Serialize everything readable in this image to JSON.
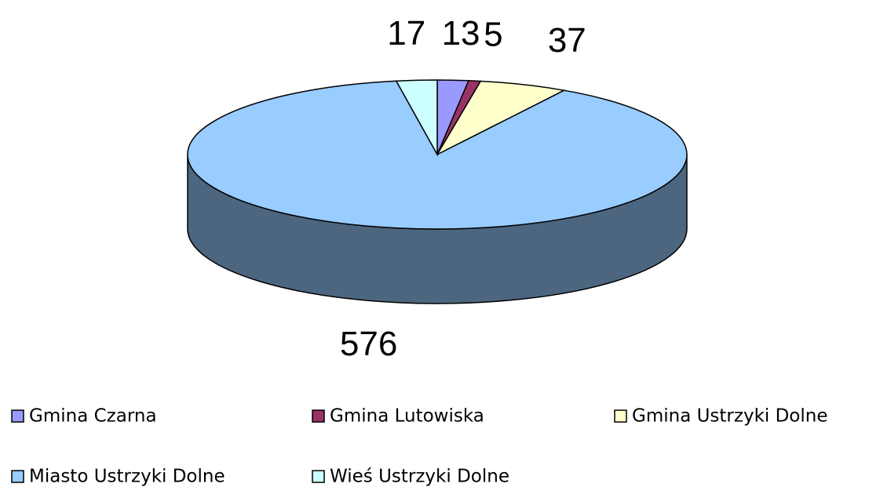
{
  "chart_data": {
    "type": "pie",
    "categories": [
      "Gmina Czarna",
      "Gmina Lutowiska",
      "Gmina Ustrzyki Dolne",
      "Miasto Ustrzyki Dolne",
      "Wieś Ustrzyki Dolne"
    ],
    "values": [
      13,
      5,
      37,
      576,
      17
    ],
    "colors": [
      "#9999ff",
      "#993366",
      "#ffffcc",
      "#99ccff",
      "#ccffff"
    ],
    "legend": "bottom"
  }
}
